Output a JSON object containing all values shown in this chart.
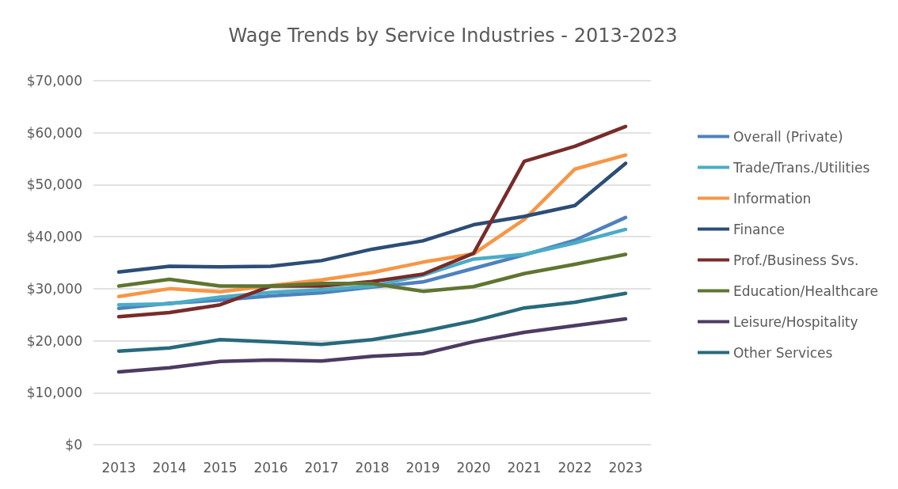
{
  "chart_data": {
    "type": "line",
    "title": "Wage Trends by Service Industries - 2013-2023",
    "categories": [
      "2013",
      "2014",
      "2015",
      "2016",
      "2017",
      "2018",
      "2019",
      "2020",
      "2021",
      "2022",
      "2023"
    ],
    "series": [
      {
        "name": "Overall (Private)",
        "color": "#4f81bd",
        "values": [
          26200,
          27200,
          27800,
          28600,
          29200,
          30300,
          31300,
          33900,
          36500,
          39300,
          43700
        ]
      },
      {
        "name": "Trade/Trans./Utilities",
        "color": "#4bacc6",
        "values": [
          26900,
          27100,
          28400,
          29300,
          29800,
          30500,
          32600,
          35700,
          36600,
          38800,
          41400
        ]
      },
      {
        "name": "Information",
        "color": "#f79646",
        "values": [
          28500,
          30000,
          29400,
          30600,
          31700,
          33100,
          35100,
          36700,
          43300,
          53000,
          55700
        ]
      },
      {
        "name": "Finance",
        "color": "#2c4d75",
        "values": [
          33200,
          34300,
          34200,
          34300,
          35400,
          37600,
          39200,
          42300,
          43900,
          46000,
          54100
        ]
      },
      {
        "name": "Prof./Business Svs.",
        "color": "#772c2a",
        "values": [
          24600,
          25400,
          26900,
          30500,
          30500,
          31400,
          32800,
          36800,
          54500,
          57400,
          61200
        ]
      },
      {
        "name": "Education/Healthcare",
        "color": "#5f7530",
        "values": [
          30500,
          31800,
          30500,
          30500,
          31000,
          31000,
          29500,
          30400,
          32900,
          34700,
          36600
        ]
      },
      {
        "name": "Leisure/Hospitality",
        "color": "#4d3b62",
        "values": [
          14000,
          14800,
          16000,
          16300,
          16100,
          17000,
          17500,
          19800,
          21600,
          22900,
          24200
        ]
      },
      {
        "name": "Other Services",
        "color": "#276a7c",
        "values": [
          18000,
          18600,
          20200,
          19800,
          19300,
          20200,
          21800,
          23800,
          26300,
          27400,
          29100
        ]
      }
    ],
    "ylim": [
      0,
      70000
    ],
    "yticks": [
      {
        "value": 0,
        "label": "$0"
      },
      {
        "value": 10000,
        "label": "$10,000"
      },
      {
        "value": 20000,
        "label": "$20,000"
      },
      {
        "value": 30000,
        "label": "$30,000"
      },
      {
        "value": 40000,
        "label": "$40,000"
      },
      {
        "value": 50000,
        "label": "$50,000"
      },
      {
        "value": 60000,
        "label": "$60,000"
      },
      {
        "value": 70000,
        "label": "$70,000"
      }
    ],
    "grid": "y",
    "legend": "right",
    "marker": "none",
    "line_style": "solid"
  }
}
